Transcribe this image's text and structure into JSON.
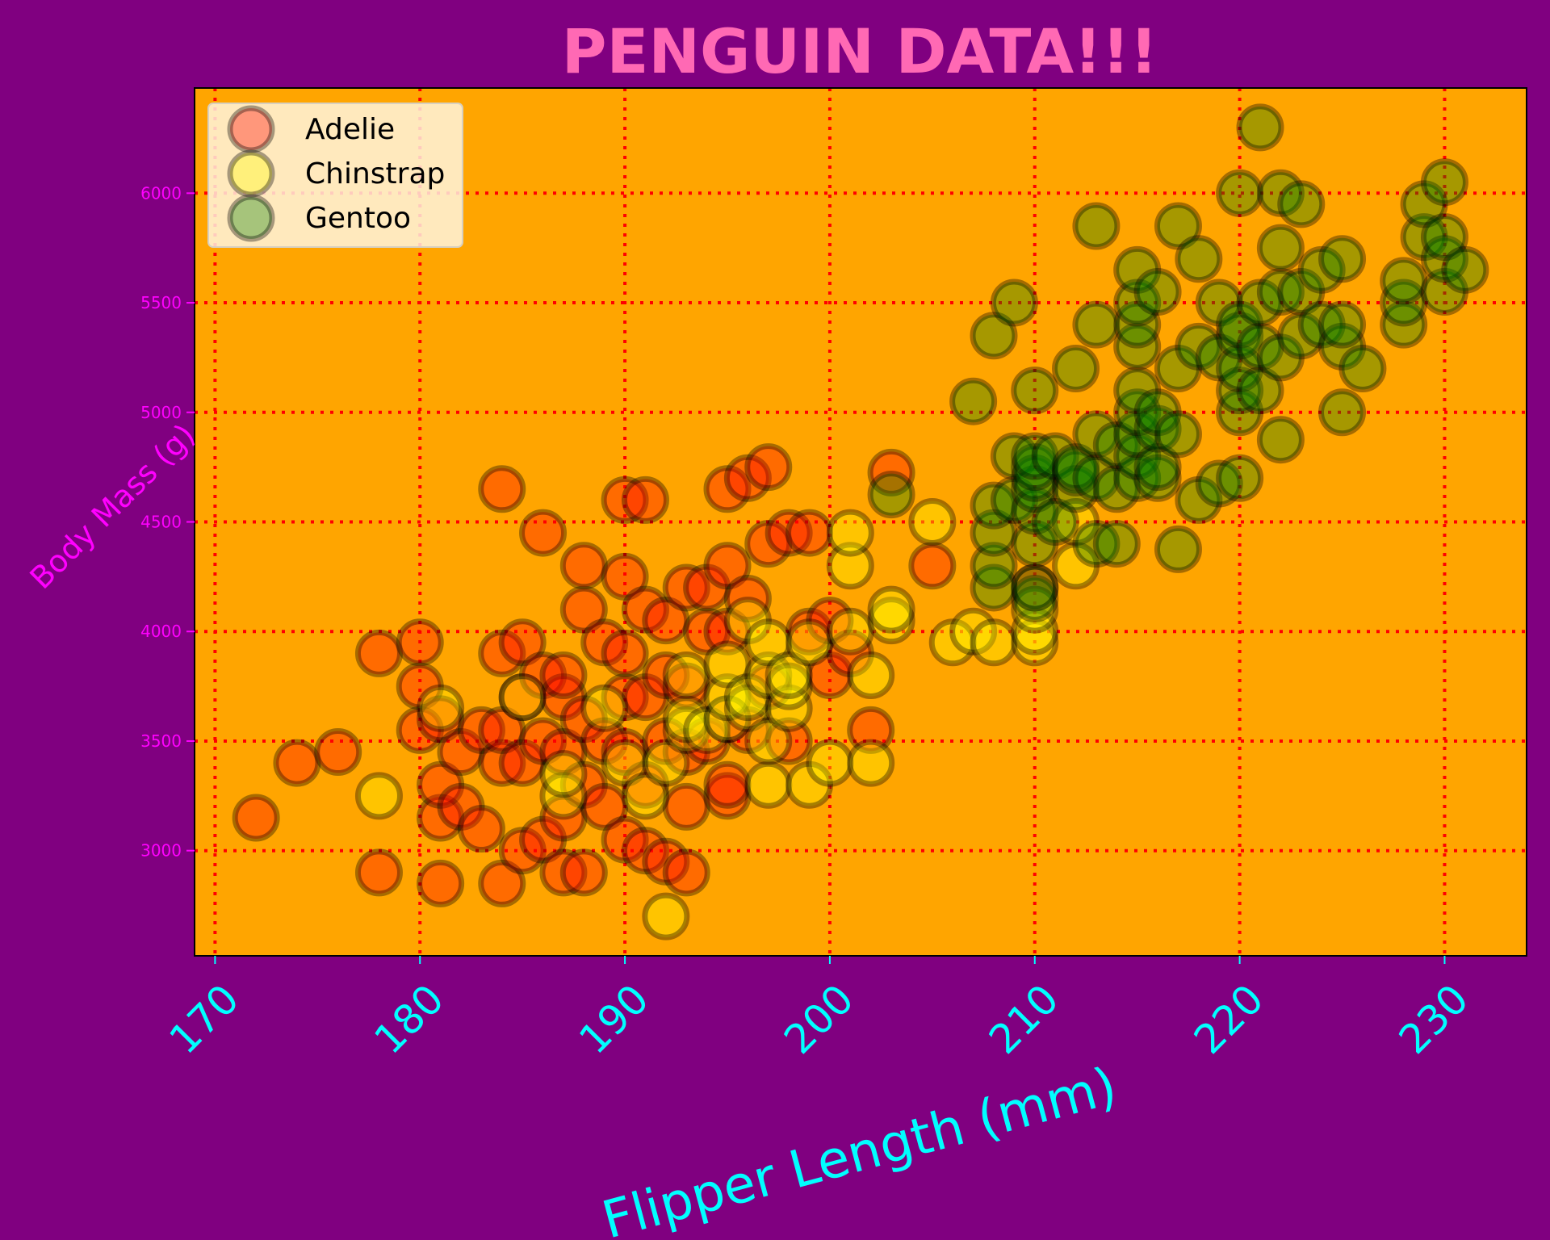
{
  "chart_data": {
    "type": "scatter",
    "title": "PENGUIN DATA!!!",
    "xlabel": "Flipper Length (mm)",
    "ylabel": "Body Mass (g)",
    "xlim": [
      169,
      234
    ],
    "ylim": [
      2520,
      6480
    ],
    "xticks": [
      "170",
      "180",
      "190",
      "200",
      "210",
      "220",
      "230"
    ],
    "yticks": [
      "3000",
      "3500",
      "4000",
      "4500",
      "5000",
      "5500",
      "6000"
    ],
    "grid": true,
    "legend_position": "top-left",
    "colors": {
      "background": "#800080",
      "plot_background": "#FFA500",
      "grid": "#FF0000",
      "title": "#FF69B4",
      "x_axis_text": "#00FFFF",
      "y_axis_text": "#FF00FF",
      "marker_edge": "#000000"
    },
    "series": [
      {
        "name": "Adelie",
        "color": "#FF0000",
        "points": [
          [
            172,
            3150
          ],
          [
            174,
            3400
          ],
          [
            176,
            3450
          ],
          [
            178,
            2900
          ],
          [
            178,
            3900
          ],
          [
            180,
            3550
          ],
          [
            180,
            3950
          ],
          [
            180,
            3750
          ],
          [
            181,
            2850
          ],
          [
            181,
            3150
          ],
          [
            181,
            3300
          ],
          [
            181,
            3600
          ],
          [
            182,
            3200
          ],
          [
            182,
            3450
          ],
          [
            183,
            3100
          ],
          [
            183,
            3550
          ],
          [
            184,
            2850
          ],
          [
            184,
            3400
          ],
          [
            184,
            3550
          ],
          [
            184,
            3900
          ],
          [
            184,
            4650
          ],
          [
            185,
            3000
          ],
          [
            185,
            3400
          ],
          [
            185,
            3700
          ],
          [
            185,
            3950
          ],
          [
            186,
            3050
          ],
          [
            186,
            3500
          ],
          [
            186,
            3800
          ],
          [
            186,
            4450
          ],
          [
            187,
            2900
          ],
          [
            187,
            3150
          ],
          [
            187,
            3450
          ],
          [
            187,
            3700
          ],
          [
            187,
            3800
          ],
          [
            188,
            2900
          ],
          [
            188,
            3300
          ],
          [
            188,
            3600
          ],
          [
            188,
            4100
          ],
          [
            188,
            4300
          ],
          [
            189,
            3200
          ],
          [
            189,
            3500
          ],
          [
            189,
            3950
          ],
          [
            190,
            3050
          ],
          [
            190,
            3450
          ],
          [
            190,
            3700
          ],
          [
            190,
            3900
          ],
          [
            190,
            4250
          ],
          [
            190,
            4600
          ],
          [
            191,
            3000
          ],
          [
            191,
            3300
          ],
          [
            191,
            3700
          ],
          [
            191,
            4100
          ],
          [
            191,
            4600
          ],
          [
            192,
            2950
          ],
          [
            192,
            3500
          ],
          [
            192,
            3800
          ],
          [
            192,
            4050
          ],
          [
            193,
            2900
          ],
          [
            193,
            3200
          ],
          [
            193,
            3450
          ],
          [
            193,
            3750
          ],
          [
            193,
            4200
          ],
          [
            194,
            3500
          ],
          [
            194,
            4000
          ],
          [
            194,
            4200
          ],
          [
            195,
            3250
          ],
          [
            195,
            3300
          ],
          [
            195,
            3600
          ],
          [
            195,
            4000
          ],
          [
            195,
            4300
          ],
          [
            195,
            4650
          ],
          [
            196,
            3550
          ],
          [
            196,
            4150
          ],
          [
            196,
            4700
          ],
          [
            197,
            3750
          ],
          [
            197,
            4400
          ],
          [
            197,
            4750
          ],
          [
            198,
            3500
          ],
          [
            198,
            4450
          ],
          [
            199,
            4000
          ],
          [
            199,
            4450
          ],
          [
            200,
            3800
          ],
          [
            200,
            4050
          ],
          [
            201,
            3900
          ],
          [
            202,
            3550
          ],
          [
            203,
            4725
          ],
          [
            205,
            4300
          ],
          [
            210,
            4200
          ]
        ]
      },
      {
        "name": "Chinstrap",
        "color": "#FFFF00",
        "points": [
          [
            178,
            3250
          ],
          [
            181,
            3650
          ],
          [
            185,
            3700
          ],
          [
            187,
            3250
          ],
          [
            187,
            3350
          ],
          [
            189,
            3650
          ],
          [
            190,
            3400
          ],
          [
            191,
            3250
          ],
          [
            192,
            2700
          ],
          [
            192,
            3400
          ],
          [
            193,
            3550
          ],
          [
            193,
            3600
          ],
          [
            193,
            3800
          ],
          [
            194,
            3550
          ],
          [
            195,
            3600
          ],
          [
            195,
            3700
          ],
          [
            195,
            3850
          ],
          [
            196,
            3650
          ],
          [
            196,
            3700
          ],
          [
            196,
            4050
          ],
          [
            197,
            3300
          ],
          [
            197,
            3500
          ],
          [
            197,
            3800
          ],
          [
            197,
            3950
          ],
          [
            198,
            3650
          ],
          [
            198,
            3750
          ],
          [
            198,
            3800
          ],
          [
            199,
            3300
          ],
          [
            199,
            3950
          ],
          [
            200,
            3400
          ],
          [
            201,
            4000
          ],
          [
            201,
            4300
          ],
          [
            201,
            4450
          ],
          [
            202,
            3400
          ],
          [
            202,
            3800
          ],
          [
            203,
            4050
          ],
          [
            203,
            4100
          ],
          [
            205,
            4500
          ],
          [
            206,
            3950
          ],
          [
            207,
            4000
          ],
          [
            208,
            3950
          ],
          [
            210,
            3950
          ],
          [
            210,
            4000
          ],
          [
            210,
            4100
          ],
          [
            212,
            4300
          ],
          [
            212,
            4500
          ]
        ]
      },
      {
        "name": "Gentoo",
        "color": "#008000",
        "points": [
          [
            203,
            4625
          ],
          [
            207,
            5050
          ],
          [
            208,
            4200
          ],
          [
            208,
            4300
          ],
          [
            208,
            4450
          ],
          [
            208,
            4575
          ],
          [
            208,
            5350
          ],
          [
            209,
            4600
          ],
          [
            209,
            4800
          ],
          [
            209,
            5500
          ],
          [
            210,
            4150
          ],
          [
            210,
            4200
          ],
          [
            210,
            4400
          ],
          [
            210,
            4550
          ],
          [
            210,
            4650
          ],
          [
            210,
            4700
          ],
          [
            210,
            4750
          ],
          [
            210,
            4800
          ],
          [
            210,
            5100
          ],
          [
            211,
            4500
          ],
          [
            211,
            4800
          ],
          [
            212,
            4650
          ],
          [
            212,
            4725
          ],
          [
            212,
            4750
          ],
          [
            212,
            5200
          ],
          [
            213,
            4700
          ],
          [
            213,
            4400
          ],
          [
            213,
            4900
          ],
          [
            213,
            5400
          ],
          [
            213,
            5850
          ],
          [
            214,
            4400
          ],
          [
            214,
            4650
          ],
          [
            214,
            4850
          ],
          [
            215,
            4700
          ],
          [
            215,
            4800
          ],
          [
            215,
            4900
          ],
          [
            215,
            5000
          ],
          [
            215,
            5100
          ],
          [
            215,
            5300
          ],
          [
            215,
            5400
          ],
          [
            215,
            5500
          ],
          [
            215,
            5650
          ],
          [
            216,
            4700
          ],
          [
            216,
            4750
          ],
          [
            216,
            4925
          ],
          [
            216,
            5000
          ],
          [
            216,
            5550
          ],
          [
            217,
            4375
          ],
          [
            217,
            4900
          ],
          [
            217,
            5200
          ],
          [
            217,
            5850
          ],
          [
            218,
            4600
          ],
          [
            218,
            5300
          ],
          [
            218,
            5700
          ],
          [
            219,
            4675
          ],
          [
            219,
            5250
          ],
          [
            219,
            5500
          ],
          [
            220,
            4700
          ],
          [
            220,
            5000
          ],
          [
            220,
            5100
          ],
          [
            220,
            5200
          ],
          [
            220,
            5350
          ],
          [
            220,
            5400
          ],
          [
            220,
            6000
          ],
          [
            221,
            5100
          ],
          [
            221,
            5300
          ],
          [
            221,
            5500
          ],
          [
            221,
            6300
          ],
          [
            222,
            4875
          ],
          [
            222,
            5250
          ],
          [
            222,
            5550
          ],
          [
            222,
            5750
          ],
          [
            222,
            6000
          ],
          [
            223,
            5350
          ],
          [
            223,
            5550
          ],
          [
            223,
            5950
          ],
          [
            224,
            5400
          ],
          [
            224,
            5650
          ],
          [
            225,
            5300
          ],
          [
            225,
            5700
          ],
          [
            225,
            5000
          ],
          [
            225,
            5400
          ],
          [
            226,
            5200
          ],
          [
            228,
            5400
          ],
          [
            228,
            5500
          ],
          [
            228,
            5600
          ],
          [
            229,
            5800
          ],
          [
            229,
            5950
          ],
          [
            230,
            5550
          ],
          [
            230,
            5700
          ],
          [
            230,
            5800
          ],
          [
            230,
            6050
          ],
          [
            231,
            5650
          ]
        ]
      }
    ]
  }
}
